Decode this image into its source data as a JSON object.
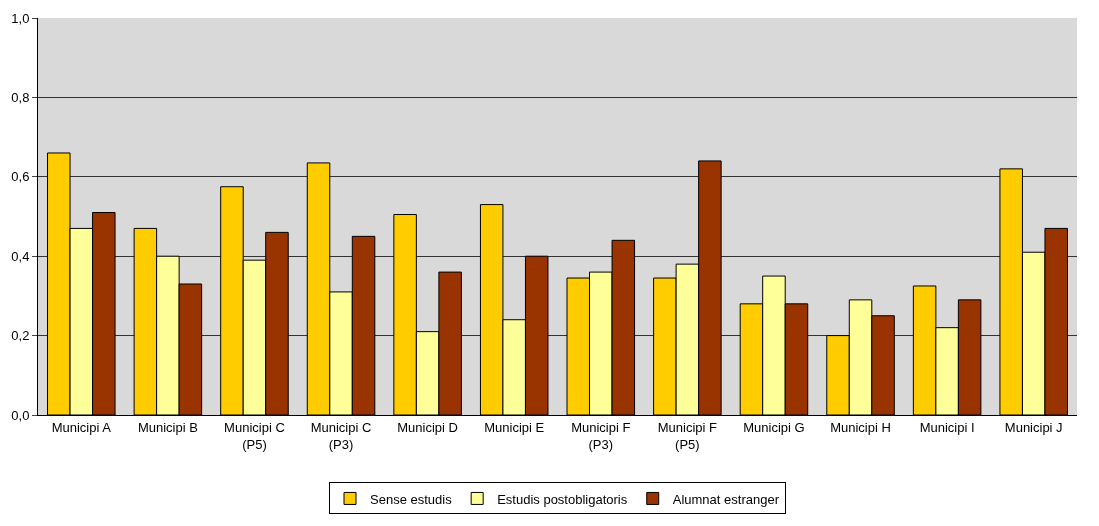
{
  "chart_data": {
    "type": "bar",
    "categories": [
      "Municipi A",
      "Municipi B",
      "Municipi C (P5)",
      "Municipi C (P3)",
      "Municipi D",
      "Municipi E",
      "Municipi F (P3)",
      "Municipi F (P5)",
      "Municipi G",
      "Municipi H",
      "Municipi I",
      "Municipi J"
    ],
    "series": [
      {
        "name": "Sense estudis",
        "color": "#ffcc00",
        "values": [
          0.66,
          0.47,
          0.575,
          0.635,
          0.505,
          0.53,
          0.345,
          0.345,
          0.28,
          0.2,
          0.325,
          0.62
        ]
      },
      {
        "name": "Estudis postobligatoris",
        "color": "#ffff99",
        "values": [
          0.47,
          0.4,
          0.39,
          0.31,
          0.21,
          0.24,
          0.36,
          0.38,
          0.35,
          0.29,
          0.22,
          0.41
        ]
      },
      {
        "name": "Alumnat estranger",
        "color": "#993300",
        "values": [
          0.51,
          0.33,
          0.46,
          0.45,
          0.36,
          0.4,
          0.44,
          0.64,
          0.28,
          0.25,
          0.29,
          0.47
        ]
      }
    ],
    "ylim": [
      0,
      1
    ],
    "yticks": [
      {
        "value": 0,
        "label": "0,0"
      },
      {
        "value": 0.2,
        "label": "0,2"
      },
      {
        "value": 0.4,
        "label": "0,4"
      },
      {
        "value": 0.6,
        "label": "0,6"
      },
      {
        "value": 0.8,
        "label": "0,8"
      },
      {
        "value": 1,
        "label": "1,0"
      }
    ],
    "grid": "y",
    "legend": "bottom"
  }
}
